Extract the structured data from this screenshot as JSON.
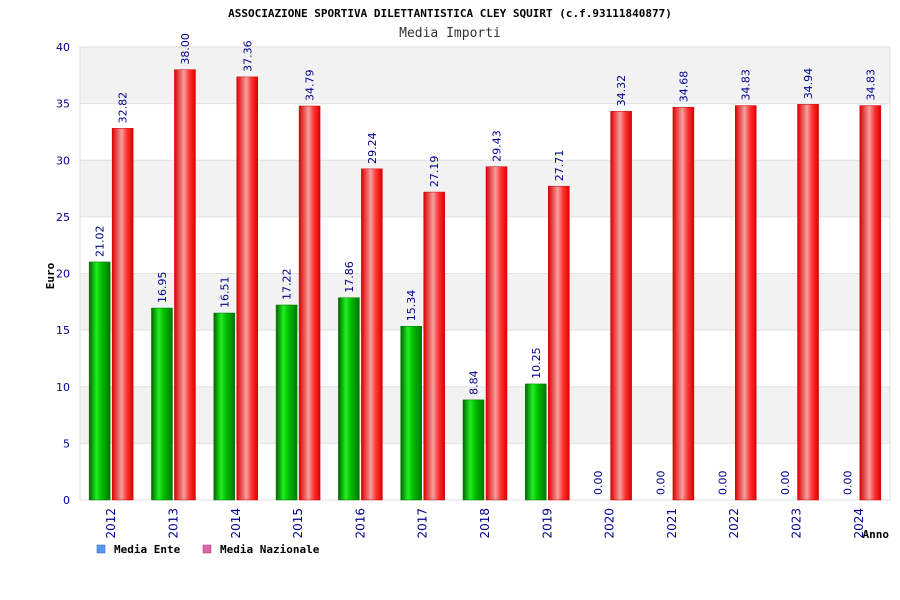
{
  "chart_data": {
    "type": "bar",
    "title": "ASSOCIAZIONE SPORTIVA DILETTANTISTICA CLEY SQUIRT (c.f.93111840877)",
    "subtitle": "Media Importi",
    "xlabel": "Anno",
    "ylabel": "Euro",
    "ylim": [
      0,
      40
    ],
    "yticks": [
      0,
      5,
      10,
      15,
      20,
      25,
      30,
      35,
      40
    ],
    "categories": [
      "2012",
      "2013",
      "2014",
      "2015",
      "2016",
      "2017",
      "2018",
      "2019",
      "2020",
      "2021",
      "2022",
      "2023",
      "2024"
    ],
    "series": [
      {
        "name": "Media Ente",
        "values": [
          21.02,
          16.95,
          16.51,
          17.22,
          17.86,
          15.34,
          8.84,
          10.25,
          0,
          0,
          0,
          0,
          0
        ],
        "labels": [
          "21.02",
          "16.95",
          "16.51",
          "17.22",
          "17.86",
          "15.34",
          "8.84",
          "10.25",
          "0.00",
          "0.00",
          "0.00",
          "0.00",
          "0.00"
        ],
        "color": "#00aa00"
      },
      {
        "name": "Media Nazionale",
        "values": [
          32.82,
          38.0,
          37.36,
          34.79,
          29.24,
          27.19,
          29.43,
          27.71,
          34.32,
          34.68,
          34.83,
          34.94,
          34.83
        ],
        "labels": [
          "32.82",
          "38.00",
          "37.36",
          "34.79",
          "29.24",
          "27.19",
          "29.43",
          "27.71",
          "34.32",
          "34.68",
          "34.83",
          "34.94",
          "34.83"
        ],
        "color": "#ee1111"
      }
    ],
    "legend": {
      "position": "bottom-left",
      "colors": [
        "#5599ee",
        "#dd66aa"
      ]
    },
    "grid": true
  }
}
